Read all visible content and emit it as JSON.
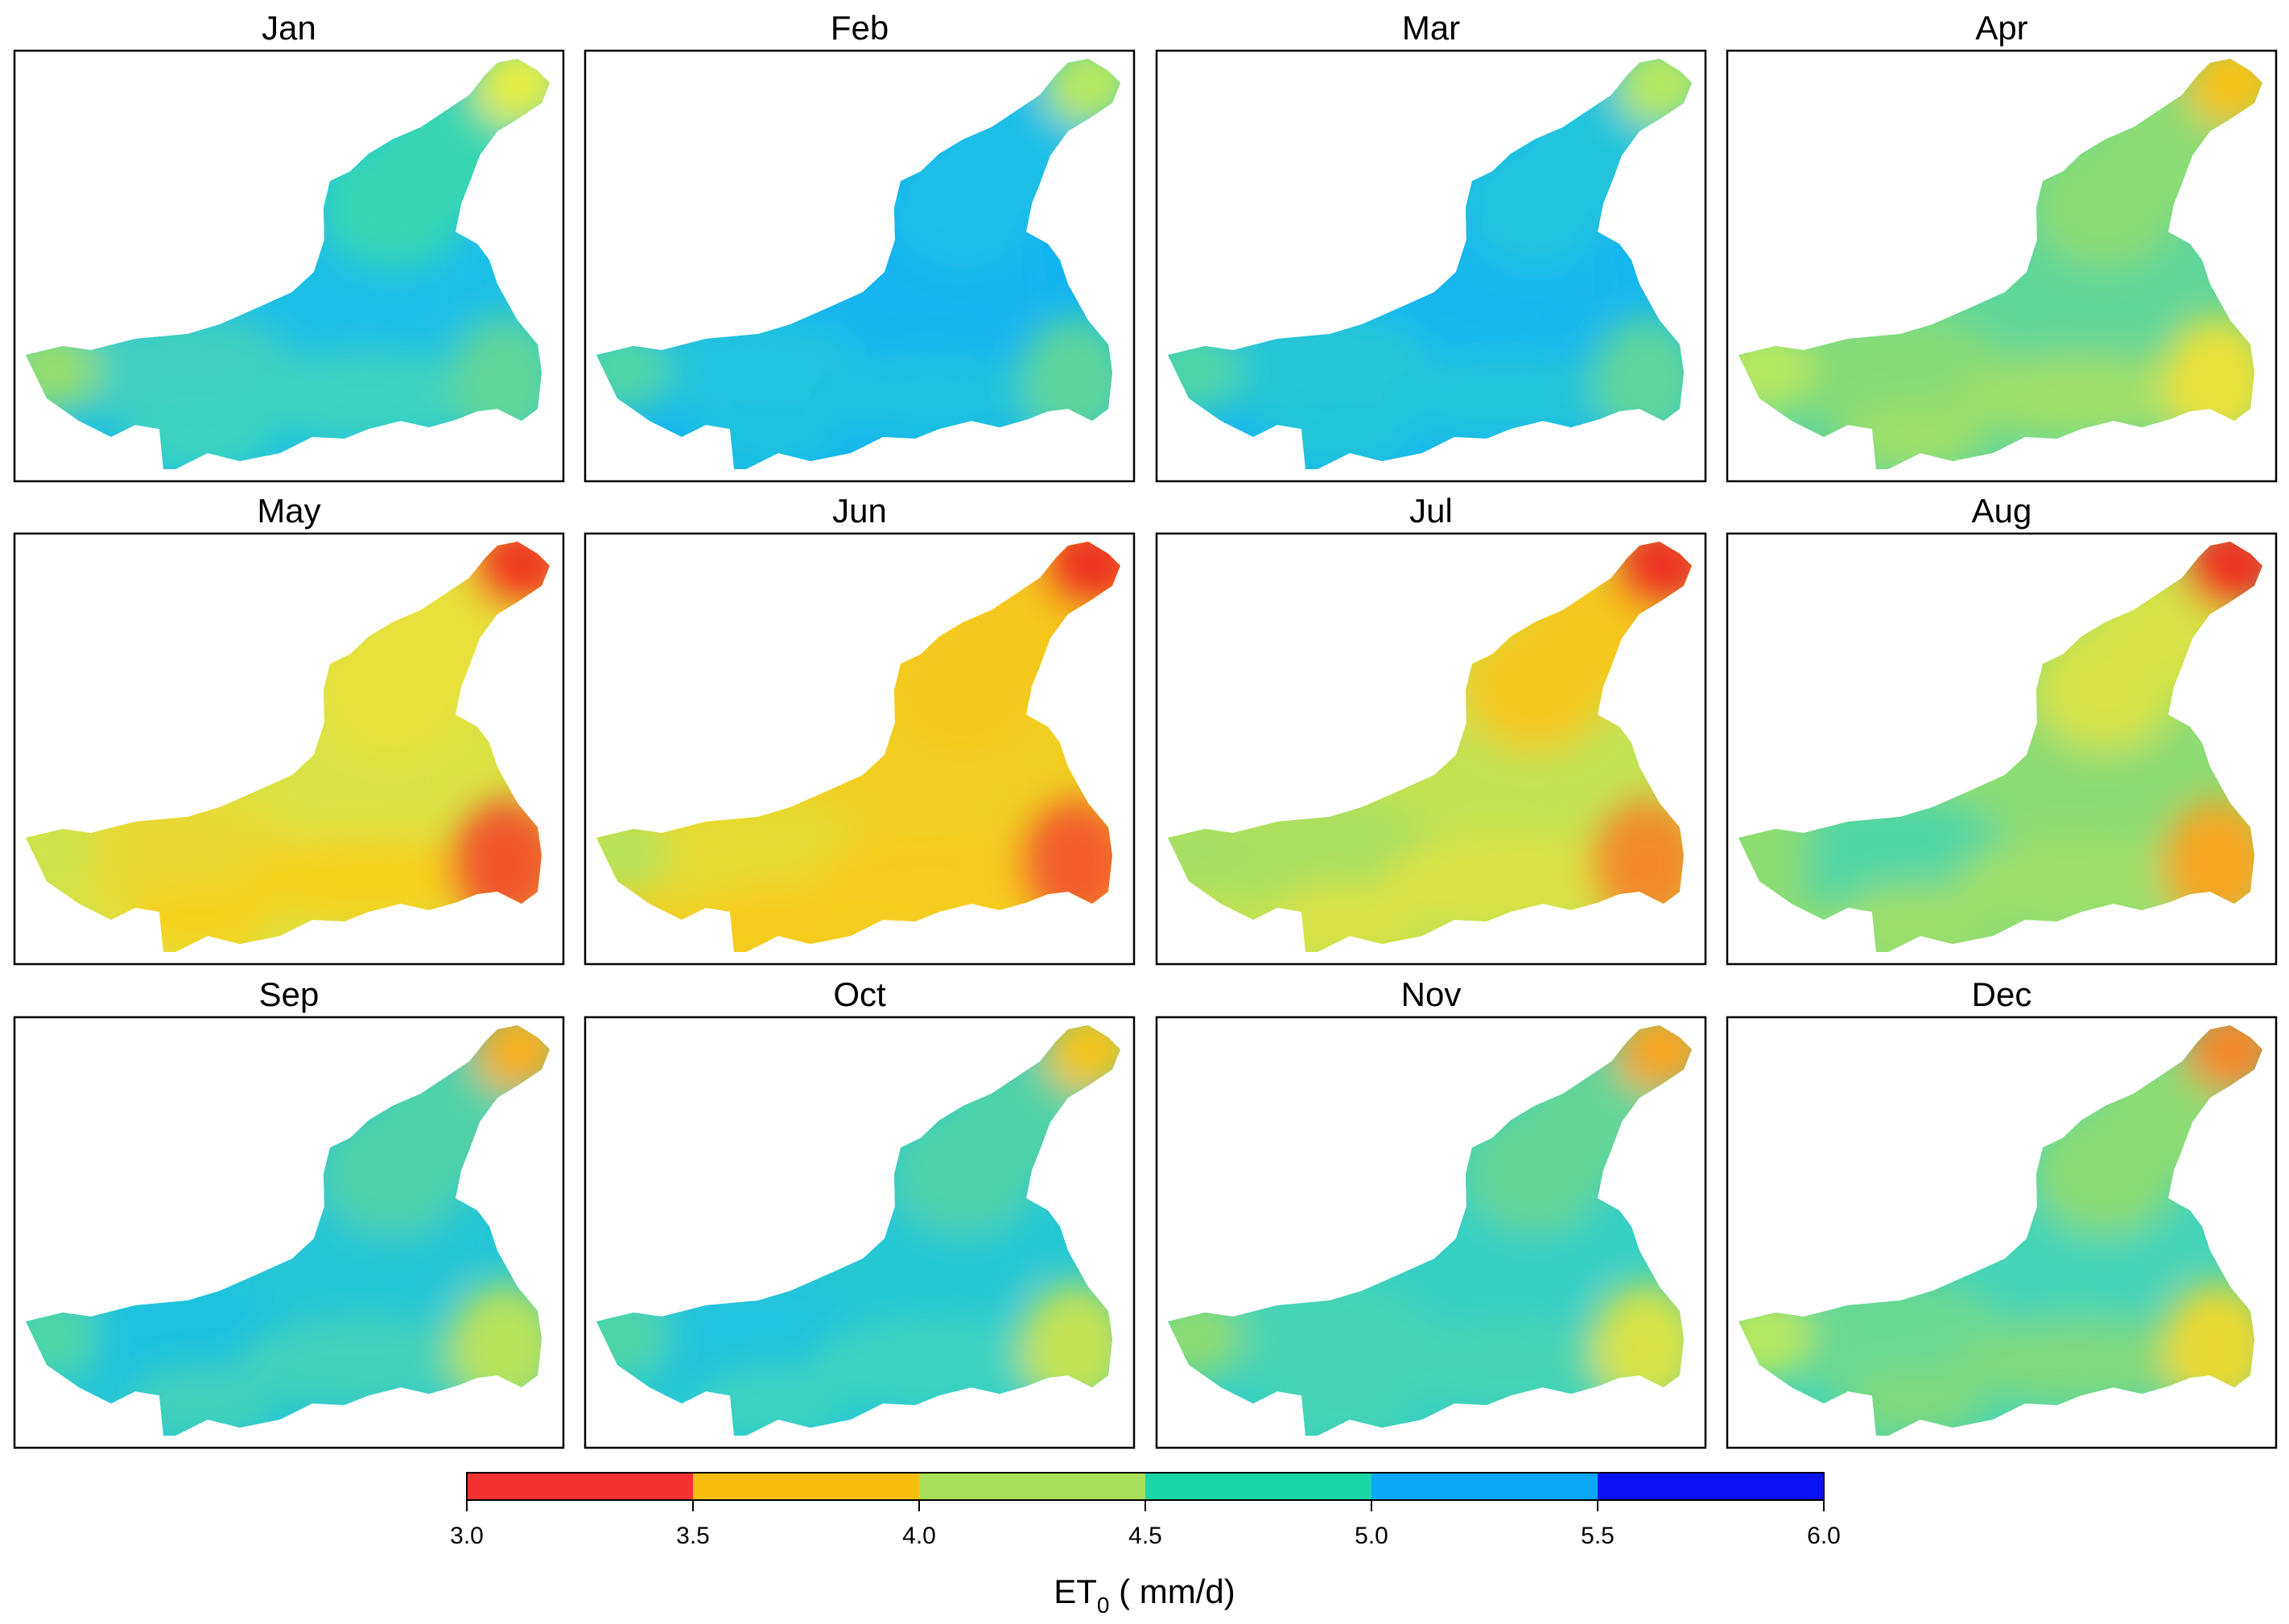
{
  "months": [
    {
      "label": "Jan",
      "regions": {
        "ne_tip": "#e4ee47",
        "upper_arm": "#39d6b0",
        "center": "#1cbfe6",
        "west_arm": "#3fcfc0",
        "west_tip": "#95de70",
        "se_lobe": "#5fd69a",
        "south": "#3ed3bf"
      }
    },
    {
      "label": "Feb",
      "regions": {
        "ne_tip": "#b6e85f",
        "upper_arm": "#1cbfe6",
        "center": "#13b4f0",
        "west_arm": "#22c3dd",
        "west_tip": "#4fd6a6",
        "se_lobe": "#5cd59c",
        "south": "#1fc2de"
      }
    },
    {
      "label": "Mar",
      "regions": {
        "ne_tip": "#b6e85f",
        "upper_arm": "#20c4dc",
        "center": "#16b7ee",
        "west_arm": "#25c6d6",
        "west_tip": "#4fd6a6",
        "se_lobe": "#5dd59c",
        "south": "#22c4da"
      }
    },
    {
      "label": "Apr",
      "regions": {
        "ne_tip": "#f6c219",
        "upper_arm": "#8cdc74",
        "center": "#5fd69a",
        "west_arm": "#86db78",
        "west_tip": "#b6e85f",
        "se_lobe": "#e8e13a",
        "south": "#9ddf6c"
      }
    },
    {
      "label": "May",
      "regions": {
        "ne_tip": "#f03a24",
        "upper_arm": "#e8e13a",
        "center": "#d9e244",
        "west_arm": "#e9d832",
        "west_tip": "#cde34b",
        "se_lobe": "#f0572a",
        "south": "#f5d21e"
      }
    },
    {
      "label": "Jun",
      "regions": {
        "ne_tip": "#ee3020",
        "upper_arm": "#f5c81c",
        "center": "#f0cf22",
        "west_arm": "#e6db32",
        "west_tip": "#b8e25a",
        "se_lobe": "#f25d2a",
        "south": "#f7cc1c"
      }
    },
    {
      "label": "Jul",
      "regions": {
        "ne_tip": "#ee3020",
        "upper_arm": "#f5c81c",
        "center": "#c3e252",
        "west_arm": "#aadf5f",
        "west_tip": "#a4df64",
        "se_lobe": "#f3892b",
        "south": "#d9e244"
      }
    },
    {
      "label": "Aug",
      "regions": {
        "ne_tip": "#ee3020",
        "upper_arm": "#d6e246",
        "center": "#8cdc74",
        "west_arm": "#4fd6a6",
        "west_tip": "#8ddc72",
        "se_lobe": "#f5a623",
        "south": "#9ddf6c"
      }
    },
    {
      "label": "Sep",
      "regions": {
        "ne_tip": "#f5b020",
        "upper_arm": "#50d2a8",
        "center": "#25c6d6",
        "west_arm": "#1fc2de",
        "west_tip": "#4fd6a6",
        "se_lobe": "#b8e25a",
        "south": "#42d1b8"
      }
    },
    {
      "label": "Oct",
      "regions": {
        "ne_tip": "#f2c41c",
        "upper_arm": "#50d2a8",
        "center": "#26c8d4",
        "west_arm": "#22c3dd",
        "west_tip": "#4fd6a6",
        "se_lobe": "#c3e252",
        "south": "#3ed3bf"
      }
    },
    {
      "label": "Nov",
      "regions": {
        "ne_tip": "#f5a623",
        "upper_arm": "#64d597",
        "center": "#34cfc4",
        "west_arm": "#46d4b2",
        "west_tip": "#8ddc72",
        "se_lobe": "#d6e246",
        "south": "#46d4b2"
      }
    },
    {
      "label": "Dec",
      "regions": {
        "ne_tip": "#f3892b",
        "upper_arm": "#8cdc74",
        "center": "#44d4b6",
        "west_arm": "#6bd892",
        "west_tip": "#b6e85f",
        "se_lobe": "#e9d832",
        "south": "#7fd97e"
      }
    }
  ],
  "legend": {
    "bins": [
      {
        "from": 3.0,
        "to": 3.5,
        "color": "#f53232"
      },
      {
        "from": 3.5,
        "to": 4.0,
        "color": "#f7be10"
      },
      {
        "from": 4.0,
        "to": 4.5,
        "color": "#a8df5a"
      },
      {
        "from": 4.5,
        "to": 5.0,
        "color": "#1ad7a7"
      },
      {
        "from": 5.0,
        "to": 5.5,
        "color": "#0aa8f5"
      },
      {
        "from": 5.5,
        "to": 6.0,
        "color": "#0a12f2"
      }
    ],
    "ticks": [
      "3.0",
      "3.5",
      "4.0",
      "4.5",
      "5.0",
      "5.5",
      "6.0"
    ],
    "title_main": "ET",
    "title_sub": "0",
    "title_unit": " ( mm/d)"
  }
}
